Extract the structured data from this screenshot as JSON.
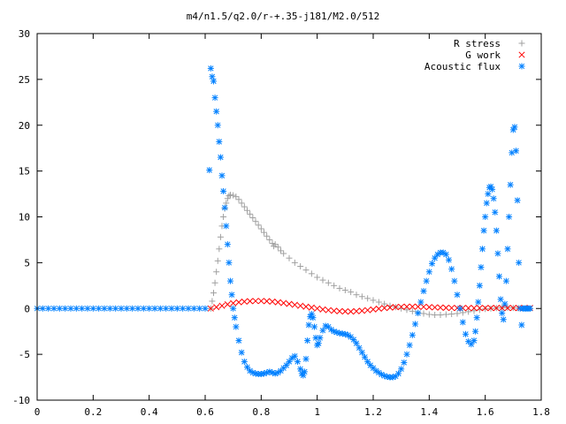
{
  "chart_data": {
    "type": "scatter",
    "title": "m4/n1.5/q2.0/r-+.35-j181/M2.0/512",
    "xlabel": "",
    "ylabel": "",
    "xlim": [
      0,
      1.8
    ],
    "ylim": [
      -10,
      30
    ],
    "xticks": [
      "0",
      "0.2",
      "0.4",
      "0.6",
      "0.8",
      "1",
      "1.2",
      "1.4",
      "1.6",
      "1.8"
    ],
    "yticks": [
      "-10",
      "-5",
      "0",
      "5",
      "10",
      "15",
      "20",
      "25",
      "30"
    ],
    "grid": false,
    "legend_position": "top-right",
    "series": [
      {
        "name": "R stress",
        "marker": "plus",
        "color": "#a0a0a0",
        "points": [
          [
            0.62,
            0.0
          ],
          [
            0.625,
            0.8
          ],
          [
            0.63,
            1.7
          ],
          [
            0.635,
            2.8
          ],
          [
            0.64,
            4.0
          ],
          [
            0.645,
            5.2
          ],
          [
            0.65,
            6.5
          ],
          [
            0.655,
            7.8
          ],
          [
            0.66,
            9.0
          ],
          [
            0.665,
            10.0
          ],
          [
            0.67,
            10.9
          ],
          [
            0.675,
            11.5
          ],
          [
            0.68,
            12.0
          ],
          [
            0.685,
            12.3
          ],
          [
            0.69,
            12.4
          ],
          [
            0.7,
            12.35
          ],
          [
            0.71,
            12.2
          ],
          [
            0.72,
            11.9
          ],
          [
            0.73,
            11.5
          ],
          [
            0.74,
            11.1
          ],
          [
            0.75,
            10.7
          ],
          [
            0.76,
            10.3
          ],
          [
            0.77,
            9.9
          ],
          [
            0.78,
            9.5
          ],
          [
            0.79,
            9.1
          ],
          [
            0.8,
            8.7
          ],
          [
            0.81,
            8.3
          ],
          [
            0.82,
            7.9
          ],
          [
            0.83,
            7.5
          ],
          [
            0.84,
            7.1
          ],
          [
            0.845,
            6.8
          ],
          [
            0.85,
            7.0
          ],
          [
            0.86,
            6.7
          ],
          [
            0.87,
            6.3
          ],
          [
            0.88,
            6.0
          ],
          [
            0.9,
            5.5
          ],
          [
            0.92,
            5.0
          ],
          [
            0.94,
            4.6
          ],
          [
            0.96,
            4.2
          ],
          [
            0.98,
            3.8
          ],
          [
            1.0,
            3.4
          ],
          [
            1.02,
            3.1
          ],
          [
            1.04,
            2.8
          ],
          [
            1.06,
            2.5
          ],
          [
            1.08,
            2.2
          ],
          [
            1.1,
            2.0
          ],
          [
            1.12,
            1.8
          ],
          [
            1.14,
            1.5
          ],
          [
            1.16,
            1.3
          ],
          [
            1.18,
            1.1
          ],
          [
            1.2,
            0.9
          ],
          [
            1.22,
            0.7
          ],
          [
            1.24,
            0.5
          ],
          [
            1.26,
            0.3
          ],
          [
            1.28,
            0.15
          ],
          [
            1.3,
            0.0
          ],
          [
            1.32,
            -0.15
          ],
          [
            1.34,
            -0.3
          ],
          [
            1.36,
            -0.45
          ],
          [
            1.38,
            -0.55
          ],
          [
            1.4,
            -0.65
          ],
          [
            1.42,
            -0.7
          ],
          [
            1.44,
            -0.7
          ],
          [
            1.46,
            -0.65
          ],
          [
            1.48,
            -0.6
          ],
          [
            1.5,
            -0.55
          ],
          [
            1.52,
            -0.45
          ],
          [
            1.54,
            -0.35
          ],
          [
            1.56,
            -0.25
          ],
          [
            1.58,
            -0.15
          ],
          [
            1.6,
            -0.05
          ],
          [
            1.62,
            0.0
          ],
          [
            1.64,
            0.05
          ],
          [
            1.66,
            0.08
          ],
          [
            1.68,
            0.08
          ],
          [
            1.7,
            0.06
          ],
          [
            1.72,
            0.04
          ],
          [
            1.74,
            0.02
          ],
          [
            1.76,
            0.0
          ]
        ]
      },
      {
        "name": "G work",
        "marker": "cross",
        "color": "#ff0000",
        "points": [
          [
            0.62,
            0.0
          ],
          [
            0.64,
            0.15
          ],
          [
            0.66,
            0.3
          ],
          [
            0.68,
            0.45
          ],
          [
            0.7,
            0.58
          ],
          [
            0.72,
            0.68
          ],
          [
            0.74,
            0.75
          ],
          [
            0.76,
            0.8
          ],
          [
            0.78,
            0.82
          ],
          [
            0.8,
            0.82
          ],
          [
            0.82,
            0.8
          ],
          [
            0.84,
            0.75
          ],
          [
            0.86,
            0.68
          ],
          [
            0.88,
            0.6
          ],
          [
            0.9,
            0.5
          ],
          [
            0.92,
            0.4
          ],
          [
            0.94,
            0.3
          ],
          [
            0.96,
            0.2
          ],
          [
            0.98,
            0.1
          ],
          [
            1.0,
            0.0
          ],
          [
            1.02,
            -0.1
          ],
          [
            1.04,
            -0.18
          ],
          [
            1.06,
            -0.25
          ],
          [
            1.08,
            -0.3
          ],
          [
            1.1,
            -0.32
          ],
          [
            1.12,
            -0.33
          ],
          [
            1.14,
            -0.3
          ],
          [
            1.16,
            -0.25
          ],
          [
            1.18,
            -0.18
          ],
          [
            1.2,
            -0.1
          ],
          [
            1.22,
            -0.02
          ],
          [
            1.24,
            0.05
          ],
          [
            1.26,
            0.1
          ],
          [
            1.28,
            0.15
          ],
          [
            1.3,
            0.18
          ],
          [
            1.32,
            0.2
          ],
          [
            1.34,
            0.2
          ],
          [
            1.36,
            0.2
          ],
          [
            1.38,
            0.18
          ],
          [
            1.4,
            0.15
          ],
          [
            1.42,
            0.12
          ],
          [
            1.44,
            0.1
          ],
          [
            1.46,
            0.08
          ],
          [
            1.48,
            0.06
          ],
          [
            1.5,
            0.05
          ],
          [
            1.52,
            0.05
          ],
          [
            1.54,
            0.05
          ],
          [
            1.56,
            0.05
          ],
          [
            1.58,
            0.05
          ],
          [
            1.6,
            0.05
          ],
          [
            1.62,
            0.05
          ],
          [
            1.64,
            0.05
          ],
          [
            1.66,
            0.05
          ],
          [
            1.68,
            0.05
          ],
          [
            1.7,
            0.05
          ],
          [
            1.72,
            0.05
          ],
          [
            1.74,
            0.05
          ],
          [
            1.76,
            0.05
          ]
        ]
      },
      {
        "name": "Acoustic flux",
        "marker": "star",
        "color": "#0080ff",
        "points": [
          [
            0.0,
            0
          ],
          [
            0.02,
            0
          ],
          [
            0.04,
            0
          ],
          [
            0.06,
            0
          ],
          [
            0.08,
            0
          ],
          [
            0.1,
            0
          ],
          [
            0.12,
            0
          ],
          [
            0.14,
            0
          ],
          [
            0.16,
            0
          ],
          [
            0.18,
            0
          ],
          [
            0.2,
            0
          ],
          [
            0.22,
            0
          ],
          [
            0.24,
            0
          ],
          [
            0.26,
            0
          ],
          [
            0.28,
            0
          ],
          [
            0.3,
            0
          ],
          [
            0.32,
            0
          ],
          [
            0.34,
            0
          ],
          [
            0.36,
            0
          ],
          [
            0.38,
            0
          ],
          [
            0.4,
            0
          ],
          [
            0.42,
            0
          ],
          [
            0.44,
            0
          ],
          [
            0.46,
            0
          ],
          [
            0.48,
            0
          ],
          [
            0.5,
            0
          ],
          [
            0.52,
            0
          ],
          [
            0.54,
            0
          ],
          [
            0.56,
            0
          ],
          [
            0.58,
            0
          ],
          [
            0.6,
            0
          ],
          [
            0.615,
            15.1
          ],
          [
            0.62,
            26.2
          ],
          [
            0.625,
            25.3
          ],
          [
            0.63,
            24.8
          ],
          [
            0.635,
            23.0
          ],
          [
            0.64,
            21.5
          ],
          [
            0.645,
            20.0
          ],
          [
            0.65,
            18.2
          ],
          [
            0.655,
            16.5
          ],
          [
            0.66,
            14.5
          ],
          [
            0.665,
            12.8
          ],
          [
            0.67,
            11.0
          ],
          [
            0.675,
            9.0
          ],
          [
            0.68,
            7.0
          ],
          [
            0.685,
            5.0
          ],
          [
            0.69,
            3.0
          ],
          [
            0.695,
            1.5
          ],
          [
            0.7,
            0.0
          ],
          [
            0.705,
            -1.0
          ],
          [
            0.71,
            -2.0
          ],
          [
            0.72,
            -3.5
          ],
          [
            0.73,
            -4.8
          ],
          [
            0.74,
            -5.8
          ],
          [
            0.75,
            -6.4
          ],
          [
            0.76,
            -6.8
          ],
          [
            0.77,
            -7.0
          ],
          [
            0.78,
            -7.1
          ],
          [
            0.79,
            -7.15
          ],
          [
            0.8,
            -7.15
          ],
          [
            0.81,
            -7.1
          ],
          [
            0.82,
            -7.0
          ],
          [
            0.83,
            -6.9
          ],
          [
            0.84,
            -7.0
          ],
          [
            0.85,
            -7.1
          ],
          [
            0.86,
            -7.0
          ],
          [
            0.87,
            -6.8
          ],
          [
            0.88,
            -6.5
          ],
          [
            0.89,
            -6.2
          ],
          [
            0.9,
            -5.8
          ],
          [
            0.91,
            -5.4
          ],
          [
            0.92,
            -5.2
          ],
          [
            0.93,
            -5.8
          ],
          [
            0.94,
            -6.6
          ],
          [
            0.945,
            -7.1
          ],
          [
            0.95,
            -7.3
          ],
          [
            0.955,
            -6.9
          ],
          [
            0.96,
            -5.5
          ],
          [
            0.965,
            -3.5
          ],
          [
            0.97,
            -1.8
          ],
          [
            0.975,
            -0.9
          ],
          [
            0.98,
            -0.6
          ],
          [
            0.985,
            -1.0
          ],
          [
            0.99,
            -2.0
          ],
          [
            0.995,
            -3.2
          ],
          [
            1.0,
            -4.0
          ],
          [
            1.005,
            -3.8
          ],
          [
            1.01,
            -3.2
          ],
          [
            1.02,
            -2.4
          ],
          [
            1.03,
            -1.9
          ],
          [
            1.04,
            -2.0
          ],
          [
            1.05,
            -2.3
          ],
          [
            1.06,
            -2.5
          ],
          [
            1.07,
            -2.6
          ],
          [
            1.08,
            -2.7
          ],
          [
            1.09,
            -2.75
          ],
          [
            1.1,
            -2.8
          ],
          [
            1.11,
            -2.9
          ],
          [
            1.12,
            -3.1
          ],
          [
            1.13,
            -3.4
          ],
          [
            1.14,
            -3.8
          ],
          [
            1.15,
            -4.3
          ],
          [
            1.16,
            -4.8
          ],
          [
            1.17,
            -5.3
          ],
          [
            1.18,
            -5.8
          ],
          [
            1.19,
            -6.2
          ],
          [
            1.2,
            -6.5
          ],
          [
            1.21,
            -6.8
          ],
          [
            1.22,
            -7.0
          ],
          [
            1.23,
            -7.2
          ],
          [
            1.24,
            -7.35
          ],
          [
            1.25,
            -7.45
          ],
          [
            1.26,
            -7.5
          ],
          [
            1.27,
            -7.5
          ],
          [
            1.28,
            -7.4
          ],
          [
            1.29,
            -7.1
          ],
          [
            1.3,
            -6.6
          ],
          [
            1.31,
            -5.9
          ],
          [
            1.32,
            -5.0
          ],
          [
            1.33,
            -4.0
          ],
          [
            1.34,
            -2.9
          ],
          [
            1.35,
            -1.7
          ],
          [
            1.36,
            -0.5
          ],
          [
            1.37,
            0.7
          ],
          [
            1.38,
            1.9
          ],
          [
            1.39,
            3.0
          ],
          [
            1.4,
            4.0
          ],
          [
            1.41,
            4.9
          ],
          [
            1.42,
            5.5
          ],
          [
            1.43,
            5.9
          ],
          [
            1.44,
            6.1
          ],
          [
            1.45,
            6.1
          ],
          [
            1.46,
            5.9
          ],
          [
            1.47,
            5.3
          ],
          [
            1.48,
            4.3
          ],
          [
            1.49,
            3.0
          ],
          [
            1.5,
            1.5
          ],
          [
            1.51,
            0.0
          ],
          [
            1.52,
            -1.5
          ],
          [
            1.53,
            -2.8
          ],
          [
            1.54,
            -3.6
          ],
          [
            1.55,
            -3.9
          ],
          [
            1.56,
            -3.5
          ],
          [
            1.565,
            -2.5
          ],
          [
            1.57,
            -1.0
          ],
          [
            1.575,
            0.7
          ],
          [
            1.58,
            2.5
          ],
          [
            1.585,
            4.5
          ],
          [
            1.59,
            6.5
          ],
          [
            1.595,
            8.5
          ],
          [
            1.6,
            10.0
          ],
          [
            1.605,
            11.5
          ],
          [
            1.61,
            12.5
          ],
          [
            1.615,
            13.2
          ],
          [
            1.62,
            13.3
          ],
          [
            1.625,
            13.0
          ],
          [
            1.63,
            12.0
          ],
          [
            1.635,
            10.5
          ],
          [
            1.64,
            8.5
          ],
          [
            1.645,
            6.0
          ],
          [
            1.65,
            3.5
          ],
          [
            1.655,
            1.0
          ],
          [
            1.66,
            -0.5
          ],
          [
            1.665,
            -1.2
          ],
          [
            1.67,
            0.5
          ],
          [
            1.675,
            3.0
          ],
          [
            1.68,
            6.5
          ],
          [
            1.685,
            10.0
          ],
          [
            1.69,
            13.5
          ],
          [
            1.695,
            17.0
          ],
          [
            1.7,
            19.5
          ],
          [
            1.705,
            19.8
          ],
          [
            1.71,
            17.2
          ],
          [
            1.715,
            11.8
          ],
          [
            1.72,
            5.0
          ],
          [
            1.725,
            0.0
          ],
          [
            1.73,
            -1.8
          ],
          [
            1.735,
            0.0
          ],
          [
            1.74,
            0.0
          ],
          [
            1.745,
            0.0
          ],
          [
            1.75,
            0.0
          ],
          [
            1.755,
            0.0
          ],
          [
            1.76,
            0.0
          ]
        ]
      }
    ]
  }
}
